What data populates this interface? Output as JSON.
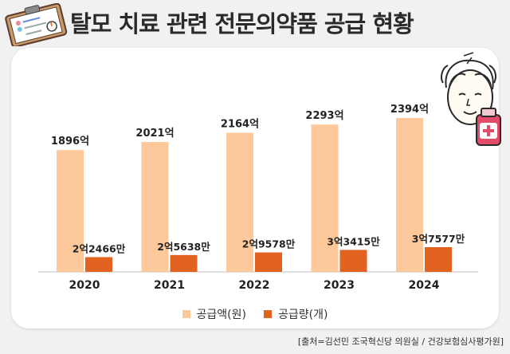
{
  "title": "탈모 치료 관련 전문의약품 공급 현황",
  "source": "[출처=김선민 조국혁신당 의원실 / 건강보험심사평가원]",
  "colors": {
    "amount": "#fdc99b",
    "quantity": "#e2621f",
    "background": "#f1f1f1",
    "card": "#ffffff"
  },
  "icons": [
    "clipboard-icon",
    "bald-man-icon",
    "medicine-bottle-icon"
  ],
  "chart_data": {
    "type": "bar",
    "title": "탈모 치료 관련 전문의약품 공급 현황",
    "categories": [
      "2020",
      "2021",
      "2022",
      "2023",
      "2024"
    ],
    "series": [
      {
        "name": "공급액(원)",
        "values": [
          1896,
          2021,
          2164,
          2293,
          2394
        ],
        "unit": "억원",
        "labels": [
          "1896억",
          "2021억",
          "2164억",
          "2293억",
          "2394억"
        ]
      },
      {
        "name": "공급량(개)",
        "values": [
          224660000,
          256380000,
          295780000,
          334150000,
          375770000
        ],
        "unit": "개",
        "labels": [
          "2억2466만",
          "2억5638만",
          "2억9578만",
          "3억3415만",
          "3억7577만"
        ]
      }
    ],
    "legend": [
      "공급액(원)",
      "공급량(개)"
    ],
    "legend_position": "bottom",
    "xlabel": "",
    "ylabel": "",
    "grid": false
  }
}
